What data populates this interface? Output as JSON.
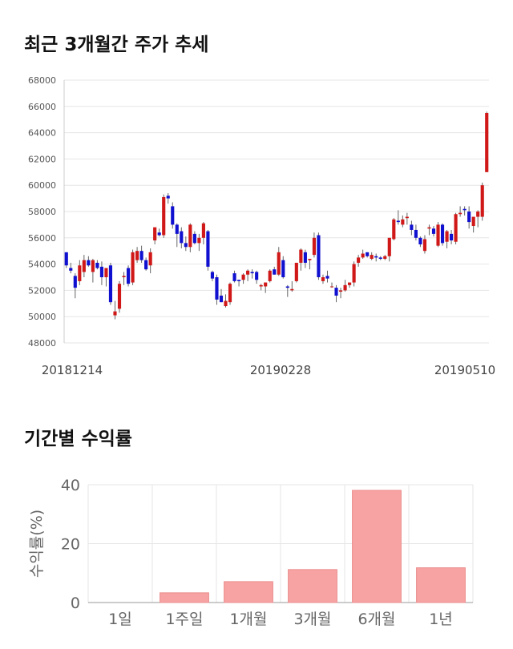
{
  "sections": {
    "price_title": "최근 3개월간 주가 추세",
    "returns_title": "기간별 수익률"
  },
  "chart_data": [
    {
      "type": "candlestick",
      "title": "최근 3개월간 주가 추세",
      "ylim": [
        48000,
        68000
      ],
      "y_ticks": [
        48000,
        50000,
        52000,
        54000,
        56000,
        58000,
        60000,
        62000,
        64000,
        66000,
        68000
      ],
      "x_tick_labels": [
        "20181214",
        "20190228",
        "20190510"
      ],
      "grid": true,
      "colors": {
        "up": "#d01818",
        "down": "#1010d0"
      },
      "ohlc": [
        [
          54900,
          54900,
          53700,
          53900
        ],
        [
          53700,
          54100,
          53300,
          53500
        ],
        [
          53100,
          53300,
          51400,
          52200
        ],
        [
          52700,
          54300,
          52400,
          53900
        ],
        [
          53400,
          54700,
          53000,
          54300
        ],
        [
          54300,
          54600,
          53800,
          53900
        ],
        [
          53400,
          54400,
          52600,
          54300
        ],
        [
          54100,
          54300,
          53600,
          53700
        ],
        [
          53800,
          54200,
          52400,
          53000
        ],
        [
          53000,
          53700,
          52300,
          53700
        ],
        [
          53900,
          54100,
          50900,
          51100
        ],
        [
          50100,
          51200,
          49800,
          50400
        ],
        [
          50600,
          52700,
          50300,
          52500
        ],
        [
          53000,
          53400,
          52400,
          53100
        ],
        [
          53700,
          53900,
          52300,
          52500
        ],
        [
          52600,
          55100,
          52400,
          54900
        ],
        [
          54300,
          55300,
          54100,
          55000
        ],
        [
          55000,
          55400,
          54100,
          54300
        ],
        [
          54300,
          54500,
          53500,
          53600
        ],
        [
          53900,
          55200,
          53300,
          54900
        ],
        [
          55800,
          56800,
          55500,
          56800
        ],
        [
          56400,
          56700,
          56100,
          56200
        ],
        [
          56200,
          59300,
          56000,
          59100
        ],
        [
          59200,
          59400,
          58600,
          59000
        ],
        [
          58400,
          58700,
          56700,
          57000
        ],
        [
          57000,
          57100,
          55300,
          56300
        ],
        [
          56500,
          56800,
          55200,
          55600
        ],
        [
          55600,
          56100,
          55000,
          55300
        ],
        [
          55300,
          57100,
          54900,
          57000
        ],
        [
          56300,
          56500,
          55500,
          55600
        ],
        [
          55600,
          56300,
          55000,
          56000
        ],
        [
          56000,
          57200,
          55500,
          57100
        ],
        [
          56500,
          56600,
          53500,
          53800
        ],
        [
          53400,
          53500,
          52700,
          52900
        ],
        [
          53000,
          53200,
          50900,
          51300
        ],
        [
          51600,
          52100,
          51100,
          51100
        ],
        [
          50800,
          51700,
          50700,
          51200
        ],
        [
          51100,
          52600,
          50900,
          52500
        ],
        [
          53300,
          53500,
          52600,
          52700
        ],
        [
          52800,
          52800,
          52300,
          52700
        ],
        [
          52800,
          53300,
          52500,
          53200
        ],
        [
          53200,
          53600,
          52700,
          53500
        ],
        [
          53400,
          53600,
          52900,
          53300
        ],
        [
          53400,
          53500,
          52500,
          52800
        ],
        [
          52300,
          52500,
          52000,
          52400
        ],
        [
          52300,
          52600,
          51800,
          52600
        ],
        [
          52700,
          53600,
          52600,
          53500
        ],
        [
          53600,
          53800,
          53200,
          53200
        ],
        [
          53200,
          55300,
          53100,
          54900
        ],
        [
          54300,
          54600,
          52900,
          53000
        ],
        [
          52300,
          52400,
          51500,
          52200
        ],
        [
          52000,
          52700,
          51900,
          52100
        ],
        [
          52700,
          54000,
          52600,
          54100
        ],
        [
          54100,
          55200,
          53500,
          55100
        ],
        [
          54900,
          55100,
          53700,
          54100
        ],
        [
          54300,
          54400,
          53600,
          54400
        ],
        [
          54700,
          56400,
          54500,
          56000
        ],
        [
          56200,
          56400,
          52800,
          53000
        ],
        [
          52700,
          53200,
          52500,
          53000
        ],
        [
          53100,
          53500,
          52600,
          52900
        ],
        [
          52300,
          52600,
          52200,
          52300
        ],
        [
          52200,
          52400,
          51100,
          51600
        ],
        [
          51900,
          52200,
          51400,
          52000
        ],
        [
          52000,
          52800,
          51900,
          52400
        ],
        [
          52400,
          52600,
          52200,
          52600
        ],
        [
          52600,
          54200,
          52300,
          54000
        ],
        [
          54100,
          54700,
          53800,
          54500
        ],
        [
          54500,
          55100,
          54400,
          54800
        ],
        [
          54900,
          54900,
          54500,
          54600
        ],
        [
          54400,
          54900,
          54300,
          54700
        ],
        [
          54600,
          54800,
          54200,
          54500
        ],
        [
          54500,
          54600,
          54300,
          54400
        ],
        [
          54400,
          54700,
          54300,
          54600
        ],
        [
          54600,
          56000,
          54200,
          56000
        ],
        [
          55900,
          57500,
          55800,
          57400
        ],
        [
          57300,
          58100,
          57000,
          57200
        ],
        [
          57000,
          57700,
          56800,
          57400
        ],
        [
          57500,
          57900,
          57000,
          57600
        ],
        [
          57000,
          57300,
          56200,
          56600
        ],
        [
          56600,
          57000,
          55800,
          56000
        ],
        [
          56000,
          56100,
          55300,
          55500
        ],
        [
          55000,
          56200,
          54800,
          55900
        ],
        [
          56700,
          57000,
          56200,
          56800
        ],
        [
          56700,
          56900,
          56100,
          56300
        ],
        [
          55400,
          57200,
          55300,
          57000
        ],
        [
          57000,
          57100,
          55400,
          55600
        ],
        [
          55700,
          56600,
          55200,
          56500
        ],
        [
          56300,
          56600,
          55500,
          55800
        ],
        [
          55700,
          57900,
          55500,
          57800
        ],
        [
          57800,
          58400,
          57600,
          57900
        ],
        [
          58200,
          58400,
          57700,
          58100
        ],
        [
          58000,
          58400,
          56700,
          57200
        ],
        [
          56900,
          57600,
          56400,
          57600
        ],
        [
          57600,
          58100,
          56800,
          58000
        ],
        [
          57600,
          60200,
          57300,
          60000
        ],
        [
          61000,
          65600,
          61000,
          65500
        ]
      ]
    },
    {
      "type": "bar",
      "categories": [
        "1일",
        "1주일",
        "1개월",
        "3개월",
        "6개월",
        "1년"
      ],
      "values": [
        0,
        3.3,
        7.1,
        11.2,
        38.1,
        11.8
      ],
      "ylabel": "수익률(%)",
      "ylim": [
        0,
        40
      ],
      "y_ticks": [
        0,
        20,
        40
      ],
      "grid": true,
      "colors": {
        "bar": "#f8a3a3",
        "bar_edge": "#ea8c8c"
      }
    }
  ]
}
